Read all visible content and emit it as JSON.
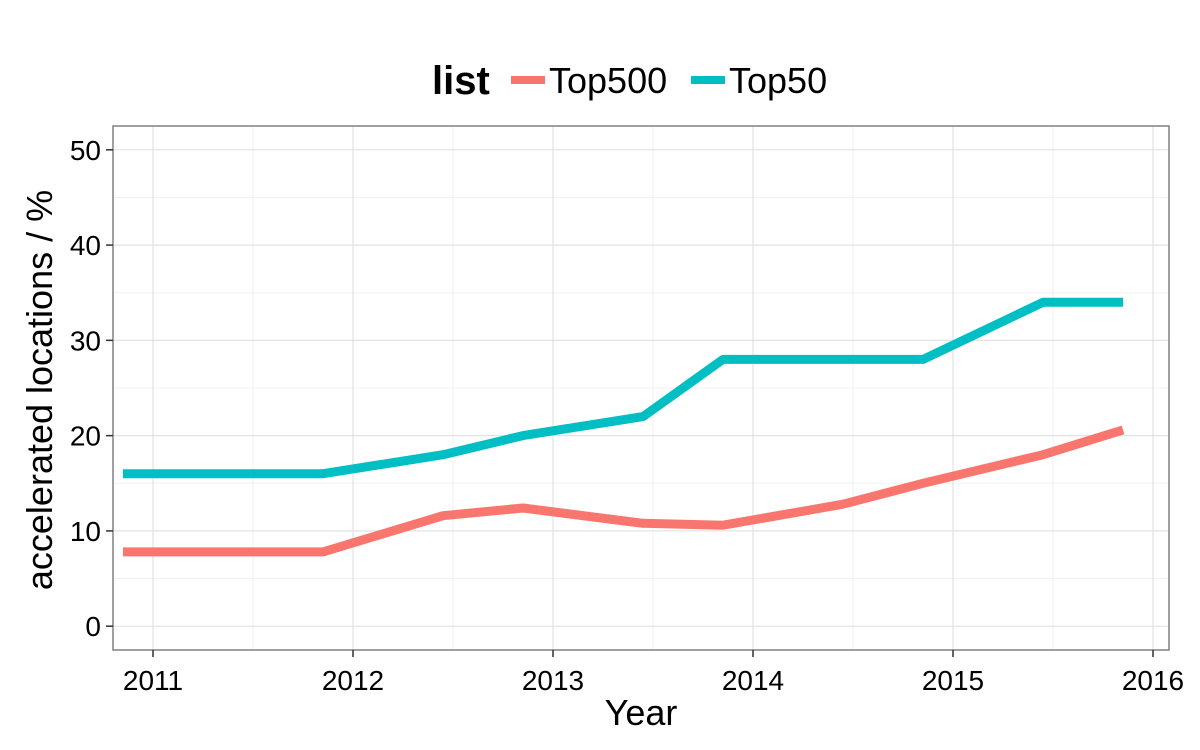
{
  "chart_data": {
    "type": "line",
    "title": "",
    "xlabel": "Year",
    "ylabel": "accelerated locations / %",
    "xlim": [
      2010.8,
      2016.08
    ],
    "ylim": [
      -2.5,
      52.5
    ],
    "xticks": [
      2011,
      2012,
      2013,
      2014,
      2015,
      2016
    ],
    "xtick_labels": [
      "2011",
      "2012",
      "2013",
      "2014",
      "2015",
      "2016"
    ],
    "yticks": [
      0,
      10,
      20,
      30,
      40,
      50
    ],
    "ytick_labels": [
      "0",
      "10",
      "20",
      "30",
      "40",
      "50"
    ],
    "grid": true,
    "legend": {
      "title": "list",
      "placement": "top",
      "entries": [
        "Top500",
        "Top50"
      ]
    },
    "series": [
      {
        "name": "Top500",
        "color": "#F8766D",
        "x": [
          2010.85,
          2011.85,
          2012.45,
          2012.85,
          2013.45,
          2013.85,
          2014.45,
          2014.85,
          2015.45,
          2015.85
        ],
        "y": [
          7.8,
          7.8,
          11.6,
          12.4,
          10.8,
          10.6,
          12.8,
          15.0,
          18.0,
          20.6
        ]
      },
      {
        "name": "Top50",
        "color": "#00BFC4",
        "x": [
          2010.85,
          2011.85,
          2012.45,
          2012.85,
          2013.45,
          2013.85,
          2014.45,
          2014.85,
          2015.45,
          2015.85
        ],
        "y": [
          16,
          16,
          18,
          20,
          22,
          28,
          28,
          28,
          34,
          34
        ]
      }
    ]
  }
}
